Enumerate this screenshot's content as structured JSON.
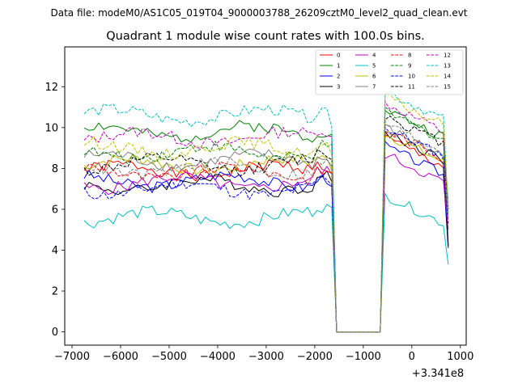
{
  "header": {
    "suptitle": "Data file: modeM0/AS1C05_019T04_9000003788_26209cztM0_level2_quad_clean.evt"
  },
  "chart_data": {
    "type": "line",
    "title": "Quadrant 1 module wise count rates with 100.0s bins.",
    "xlabel": "",
    "ylabel": "",
    "x_offset_label": "+3.341e8",
    "xlim": [
      -7150,
      1120
    ],
    "ylim": [
      -0.65,
      13.95
    ],
    "xticks": [
      -7000,
      -6000,
      -5000,
      -4000,
      -3000,
      -2000,
      -1000,
      0,
      1000
    ],
    "xtick_labels": [
      "−7000",
      "−6000",
      "−5000",
      "−4000",
      "−3000",
      "−2000",
      "−1000",
      "0",
      "1000"
    ],
    "yticks": [
      0,
      2,
      4,
      6,
      8,
      10,
      12
    ],
    "ytick_labels": [
      "0",
      "2",
      "4",
      "6",
      "8",
      "10",
      "12"
    ],
    "grid": false,
    "legend_position": "top-right",
    "x": [
      -6750,
      -6650,
      -6550,
      -6450,
      -6350,
      -6250,
      -6150,
      -6050,
      -5950,
      -5850,
      -5750,
      -5650,
      -5550,
      -5450,
      -5350,
      -5250,
      -5150,
      -5050,
      -4950,
      -4850,
      -4750,
      -4650,
      -4550,
      -4450,
      -4350,
      -4250,
      -4150,
      -4050,
      -3950,
      -3850,
      -3750,
      -3650,
      -3550,
      -3450,
      -3350,
      -3250,
      -3150,
      -3050,
      -2950,
      -2850,
      -2750,
      -2650,
      -2550,
      -2450,
      -2350,
      -2250,
      -2150,
      -2050,
      -1950,
      -1850,
      -1750,
      -1650,
      -1550,
      -1450,
      -1350,
      -1250,
      -1150,
      -1050,
      -950,
      -850,
      -750,
      -650,
      -550,
      -450,
      -350,
      -250,
      -150,
      -50,
      50,
      150,
      250,
      350,
      450,
      550,
      650,
      750
    ],
    "series": [
      {
        "name": "0",
        "color": "#ff0000",
        "dash": "solid",
        "base1": 7.9,
        "base2": 9.5,
        "slope": -0.0002
      },
      {
        "name": "1",
        "color": "#008000",
        "dash": "solid",
        "base1": 9.8,
        "base2": 10.9,
        "slope": -0.0002
      },
      {
        "name": "2",
        "color": "#0000ff",
        "dash": "solid",
        "base1": 7.4,
        "base2": 9.1,
        "slope": -0.0002
      },
      {
        "name": "3",
        "color": "#000000",
        "dash": "solid",
        "base1": 7.2,
        "base2": 9.8,
        "slope": -0.0002
      },
      {
        "name": "4",
        "color": "#bf00bf",
        "dash": "solid",
        "base1": 7.3,
        "base2": 8.7,
        "slope": -0.0002
      },
      {
        "name": "5",
        "color": "#00bfbf",
        "dash": "solid",
        "base1": 5.6,
        "base2": 6.7,
        "slope": -0.0002
      },
      {
        "name": "6",
        "color": "#bfbf00",
        "dash": "solid",
        "base1": 8.2,
        "base2": 9.7,
        "slope": -0.0002
      },
      {
        "name": "7",
        "color": "#808080",
        "dash": "solid",
        "base1": 8.4,
        "base2": 10.0,
        "slope": -0.0002
      },
      {
        "name": "8",
        "color": "#ff0000",
        "dash": "dashed",
        "base1": 7.8,
        "base2": 9.9,
        "slope": -0.0002
      },
      {
        "name": "9",
        "color": "#008000",
        "dash": "dashed",
        "base1": 8.8,
        "base2": 10.8,
        "slope": -0.0002
      },
      {
        "name": "10",
        "color": "#0000ff",
        "dash": "dashed",
        "base1": 7.0,
        "base2": 10.0,
        "slope": -0.0002
      },
      {
        "name": "11",
        "color": "#000000",
        "dash": "dashed",
        "base1": 8.2,
        "base2": 10.6,
        "slope": -0.0002
      },
      {
        "name": "12",
        "color": "#bf00bf",
        "dash": "dashed",
        "base1": 9.5,
        "base2": 11.2,
        "slope": -0.0002
      },
      {
        "name": "13",
        "color": "#00bfbf",
        "dash": "dashed",
        "base1": 10.6,
        "base2": 11.8,
        "slope": -0.0002
      },
      {
        "name": "14",
        "color": "#bfbf00",
        "dash": "dashed",
        "base1": 9.0,
        "base2": 11.5,
        "slope": -0.0002
      },
      {
        "name": "15",
        "color": "#808080",
        "dash": "dashed",
        "base1": 8.0,
        "base2": 10.2,
        "slope": -0.0002
      }
    ],
    "gap": {
      "start": -1550,
      "end": -650,
      "value": 0,
      "transition_points": [
        -1550,
        -650
      ]
    },
    "final_point": {
      "x": 750,
      "values": [
        4.2,
        4.3,
        4.1,
        4.2,
        5.0,
        3.3,
        5.6,
        5.8,
        6.3,
        6.4,
        5.3,
        6.0,
        6.1,
        5.9,
        6.2,
        5.6
      ]
    }
  }
}
